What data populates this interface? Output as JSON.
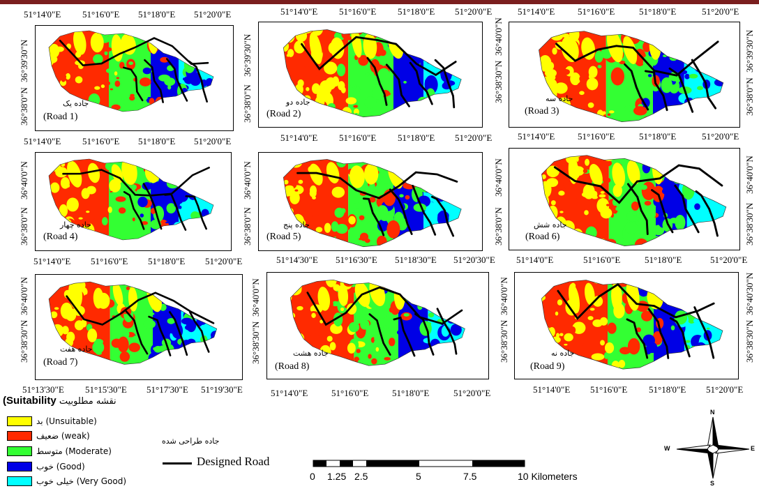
{
  "panels": [
    {
      "id": "road1",
      "name_fa": "جاده یک",
      "name_en": "(Road 1)",
      "x_ticks": [
        "51°14'0\"E",
        "51°16'0\"E",
        "51°18'0\"E",
        "51°20'0\"E"
      ],
      "y_ticks": [
        "36°38'0\"N",
        "36°39'30\"N"
      ]
    },
    {
      "id": "road2",
      "name_fa": "جاده دو",
      "name_en": "(Road 2)",
      "x_ticks": [
        "51°14'0\"E",
        "51°16'0\"E",
        "51°18'0\"E",
        "51°20'0\"E"
      ],
      "y_ticks": [
        "36°38'0\"N",
        "36°39'30\"N"
      ]
    },
    {
      "id": "road3",
      "name_fa": "جاده سه",
      "name_en": "(Road 3)",
      "x_ticks": [
        "51°14'0\"E",
        "51°16'0\"E",
        "51°18'0\"E",
        "51°20'0\"E"
      ],
      "y_ticks": [
        "36°38'30\"N",
        "36°40'0\"N"
      ],
      "y_ticks_right": [
        "36°38'0\"N",
        "36°39'30\"N"
      ]
    },
    {
      "id": "road4",
      "name_fa": "جاده چهار",
      "name_en": "(Road 4)",
      "x_ticks": [
        "51°14'0\"E",
        "51°16'0\"E",
        "51°18'0\"E",
        "51°20'0\"E"
      ],
      "x_ticks_bottom": [
        "51°14'0\"E",
        "51°16'0\"E",
        "51°18'0\"E",
        "51°20'0\"E"
      ],
      "y_ticks": [
        "36°38'0\"N",
        "36°40'0\"N"
      ]
    },
    {
      "id": "road5",
      "name_fa": "جاده پنج",
      "name_en": "(Road 5)",
      "x_ticks": [
        "51°14'0\"E",
        "51°16'0\"E",
        "51°18'0\"E",
        "51°20'0\"E"
      ],
      "x_ticks_bottom": [
        "51°14'30\"E",
        "51°16'30\"E",
        "51°18'30\"E",
        "51°20'30\"E"
      ],
      "y_ticks": [
        "36°38'0\"N",
        "36°40'0\"N"
      ]
    },
    {
      "id": "road6",
      "name_fa": "جاده شش",
      "name_en": "(Road 6)",
      "x_ticks": [
        "51°14'0\"E",
        "51°16'0\"E",
        "51°18'0\"E",
        "51°20'0\"E"
      ],
      "x_ticks_bottom": [
        "51°14'0\"E",
        "51°16'0\"E",
        "51°18'0\"E",
        "51°20'0\"E"
      ],
      "y_ticks": [
        "36°38'0\"N",
        "36°40'0\"N"
      ],
      "y_ticks_right": [
        "36°38'30\"N",
        "36°40'0\"N"
      ]
    },
    {
      "id": "road7",
      "name_fa": "جاده هفت",
      "name_en": "(Road 7)",
      "x_ticks_bottom": [
        "51°13'30\"E",
        "51°15'30\"E",
        "51°17'30\"E",
        "51°19'30\"E"
      ],
      "y_ticks": [
        "36°38'30\"N",
        "36°40'0\"N"
      ]
    },
    {
      "id": "road8",
      "name_fa": "جاده هشت",
      "name_en": "(Road 8)",
      "x_ticks_bottom": [
        "51°14'0\"E",
        "51°16'0\"E",
        "51°18'0\"E",
        "51°20'0\"E"
      ],
      "y_ticks": [
        "36°38'30\"N",
        "36°40'0\"N"
      ]
    },
    {
      "id": "road9",
      "name_fa": "جاده نه",
      "name_en": "(Road 9)",
      "x_ticks_bottom": [
        "51°14'0\"E",
        "51°16'0\"E",
        "51°18'0\"E",
        "51°20'0\"E"
      ],
      "y_ticks": [
        "36°38'30\"N",
        "36°40'0\"N"
      ],
      "y_ticks_right": [
        "36°38'30\"N",
        "36°40'30\"N"
      ]
    }
  ],
  "legend": {
    "title_fa": "نقشه مطلوبیت",
    "title_en": "(Suitability",
    "items": [
      {
        "label": "بد (Unsuitable)",
        "color": "#ffff00"
      },
      {
        "label": "ضعیف (weak)",
        "color": "#ff2a00"
      },
      {
        "label": "متوسط (Moderate)",
        "color": "#33ff33"
      },
      {
        "label": "خوب (Good)",
        "color": "#0000e6"
      },
      {
        "label": "خیلی خوب (Very Good)",
        "color": "#00ffff"
      }
    ]
  },
  "designed_road": {
    "label_fa": "جاده طراحی شده",
    "label_en": "Designed Road"
  },
  "scale_bar": {
    "labels": [
      "0",
      "1.25",
      "2.5",
      "5",
      "7.5",
      "10 Kilometers"
    ]
  },
  "north_arrow": {
    "n": "N",
    "s": "S",
    "e": "E",
    "w": "W"
  },
  "colors": {
    "unsuitable": "#ffff00",
    "weak": "#ff2a00",
    "moderate": "#33ff33",
    "good": "#0000e6",
    "very_good": "#00ffff",
    "title_bar": "#7a1e1e"
  }
}
